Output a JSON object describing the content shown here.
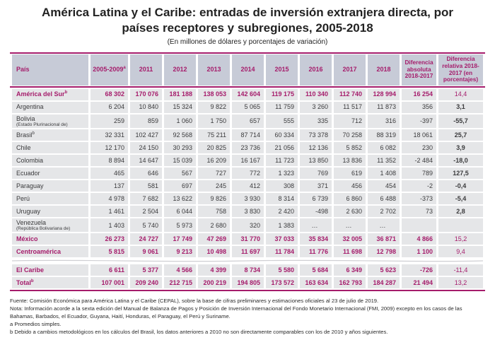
{
  "title": "América Latina y el Caribe: entradas de inversión extranjera directa, por países receptores y subregiones, 2005-2018",
  "subtitle": "(En millones de dólares y porcentajes de variación)",
  "colors": {
    "accent": "#A51C6B",
    "header_bg": "#C7CBD7",
    "cell_bg": "#E5E6E8",
    "text": "#3B3B3D"
  },
  "table": {
    "columns": [
      {
        "label": "País",
        "sup": ""
      },
      {
        "label": "2005-2009",
        "sup": "a"
      },
      {
        "label": "2011",
        "sup": ""
      },
      {
        "label": "2012",
        "sup": ""
      },
      {
        "label": "2013",
        "sup": ""
      },
      {
        "label": "2014",
        "sup": ""
      },
      {
        "label": "2015",
        "sup": ""
      },
      {
        "label": "2016",
        "sup": ""
      },
      {
        "label": "2017",
        "sup": ""
      },
      {
        "label": "2018",
        "sup": ""
      },
      {
        "label": "Diferencia absoluta 2018-2017",
        "sup": ""
      },
      {
        "label": "Diferencia relativa 2018-2017 (en porcentajes)",
        "sup": ""
      }
    ],
    "rows": [
      {
        "name": "América del Sur",
        "sup": "b",
        "sub": "",
        "accent": true,
        "values": [
          "68 302",
          "170 076",
          "181 188",
          "138 053",
          "142 604",
          "119 175",
          "110 340",
          "112 740",
          "128 994",
          "16 254",
          "14,4"
        ]
      },
      {
        "name": "Argentina",
        "sup": "",
        "sub": "",
        "accent": false,
        "values": [
          "6 204",
          "10 840",
          "15 324",
          "9 822",
          "5 065",
          "11 759",
          "3 260",
          "11 517",
          "11 873",
          "356",
          "3,1"
        ]
      },
      {
        "name": "Bolivia",
        "sup": "",
        "sub": "(Estado Plurinacional de)",
        "accent": false,
        "values": [
          "259",
          "859",
          "1 060",
          "1 750",
          "657",
          "555",
          "335",
          "712",
          "316",
          "-397",
          "-55,7"
        ]
      },
      {
        "name": "Brasil",
        "sup": "b",
        "sub": "",
        "accent": false,
        "values": [
          "32 331",
          "102 427",
          "92 568",
          "75 211",
          "87 714",
          "60 334",
          "73 378",
          "70 258",
          "88 319",
          "18 061",
          "25,7"
        ]
      },
      {
        "name": "Chile",
        "sup": "",
        "sub": "",
        "accent": false,
        "values": [
          "12 170",
          "24 150",
          "30 293",
          "20 825",
          "23 736",
          "21 056",
          "12 136",
          "5 852",
          "6 082",
          "230",
          "3,9"
        ]
      },
      {
        "name": "Colombia",
        "sup": "",
        "sub": "",
        "accent": false,
        "values": [
          "8 894",
          "14 647",
          "15 039",
          "16 209",
          "16 167",
          "11 723",
          "13 850",
          "13 836",
          "11 352",
          "-2 484",
          "-18,0"
        ]
      },
      {
        "name": "Ecuador",
        "sup": "",
        "sub": "",
        "accent": false,
        "values": [
          "465",
          "646",
          "567",
          "727",
          "772",
          "1 323",
          "769",
          "619",
          "1 408",
          "789",
          "127,5"
        ]
      },
      {
        "name": "Paraguay",
        "sup": "",
        "sub": "",
        "accent": false,
        "values": [
          "137",
          "581",
          "697",
          "245",
          "412",
          "308",
          "371",
          "456",
          "454",
          "-2",
          "-0,4"
        ]
      },
      {
        "name": "Perú",
        "sup": "",
        "sub": "",
        "accent": false,
        "values": [
          "4 978",
          "7 682",
          "13 622",
          "9 826",
          "3 930",
          "8 314",
          "6 739",
          "6 860",
          "6 488",
          "-373",
          "-5,4"
        ]
      },
      {
        "name": "Uruguay",
        "sup": "",
        "sub": "",
        "accent": false,
        "values": [
          "1 461",
          "2 504",
          "6 044",
          "758",
          "3 830",
          "2 420",
          "-498",
          "2 630",
          "2 702",
          "73",
          "2,8"
        ]
      },
      {
        "name": "Venezuela",
        "sup": "",
        "sub": "(República Bolivariana de)",
        "accent": false,
        "values": [
          "1 403",
          "5 740",
          "5 973",
          "2 680",
          "320",
          "1 383",
          "…",
          "…",
          "…",
          "",
          ""
        ]
      },
      {
        "name": "México",
        "sup": "",
        "sub": "",
        "accent": true,
        "values": [
          "26 273",
          "24 727",
          "17 749",
          "47 269",
          "31 770",
          "37 033",
          "35 834",
          "32 005",
          "36 871",
          "4 866",
          "15,2"
        ]
      },
      {
        "name": "Centroamérica",
        "sup": "",
        "sub": "",
        "accent": true,
        "values": [
          "5 815",
          "9 061",
          "9 213",
          "10 498",
          "11 697",
          "11 784",
          "11 776",
          "11 698",
          "12 798",
          "1 100",
          "9,4"
        ]
      },
      {
        "divider": true
      },
      {
        "name": "El Caribe",
        "sup": "",
        "sub": "",
        "accent": true,
        "values": [
          "6 611",
          "5 377",
          "4 566",
          "4 399",
          "8 734",
          "5 580",
          "5 684",
          "6 349",
          "5 623",
          "-726",
          "-11,4"
        ]
      },
      {
        "name": "Total",
        "sup": "b",
        "sub": "",
        "accent": true,
        "values": [
          "107 001",
          "209 240",
          "212 715",
          "200 219",
          "194 805",
          "173 572",
          "163 634",
          "162 793",
          "184 287",
          "21 494",
          "13,2"
        ]
      }
    ]
  },
  "footer": {
    "source": "Fuente: Comisión Económica para América Latina y el Caribe (CEPAL), sobre la base de cifras preliminares y estimaciones oficiales al 23 de julio de 2019.",
    "note": "Nota: Información acorde a la sexta edición del Manual de Balanza de Pagos y Posición de Inversión Internacional del Fondo Monetario Internacional (FMI, 2009) excepto en los casos de las Bahamas, Barbados, el Ecuador, Guyana, Haití, Honduras, el Paraguay, el Perú y Suriname.",
    "footnote_a": "a Promedios simples.",
    "footnote_b": "b Debido a cambios metodológicos en los cálculos del Brasil, los datos anteriores a 2010 no son directamente comparables con los de 2010 y años siguientes."
  }
}
